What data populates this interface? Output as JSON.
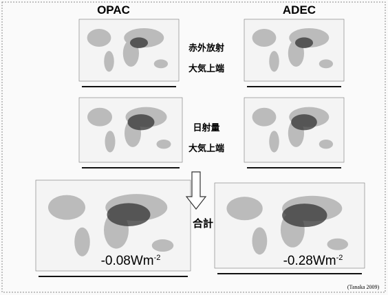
{
  "header": {
    "left": "OPAC",
    "right": "ADEC"
  },
  "rows": [
    {
      "labels": [
        "赤外放射",
        "大気上端"
      ]
    },
    {
      "labels": [
        "日射量",
        "大気上端"
      ]
    },
    {
      "labels": [
        "合計"
      ]
    }
  ],
  "totals": {
    "left": {
      "value": "-0.08Wm",
      "exponent": "-2"
    },
    "right": {
      "value": "-0.28Wm",
      "exponent": "-2"
    }
  },
  "citation": "(Tanaka 2009)"
}
